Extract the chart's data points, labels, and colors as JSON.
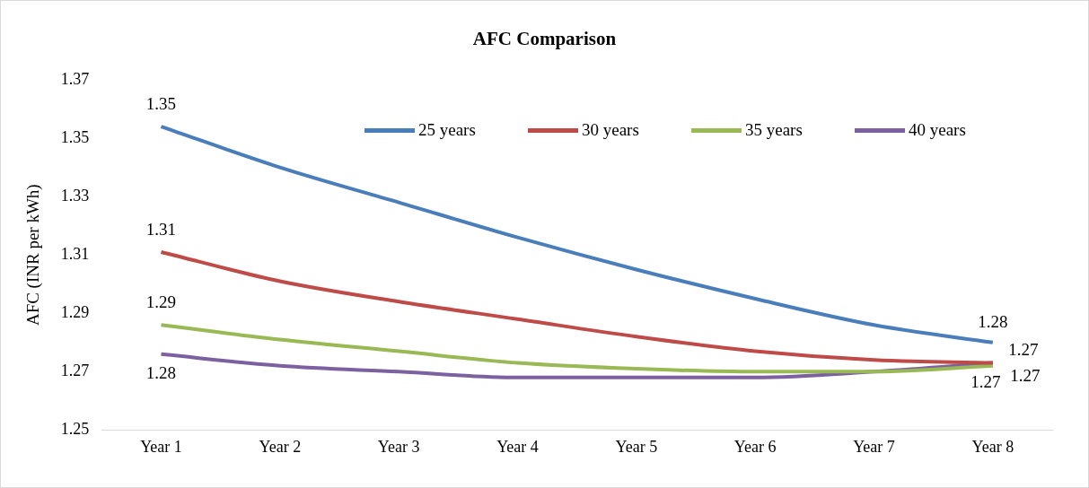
{
  "chart_data": {
    "type": "line",
    "title": "AFC Comparison",
    "ylabel": "AFC (INR per kWh)",
    "categories": [
      "Year 1",
      "Year 2",
      "Year 3",
      "Year 4",
      "Year 5",
      "Year 6",
      "Year 7",
      "Year 8"
    ],
    "series": [
      {
        "name": "25 years",
        "color": "#4a7ebb",
        "values": [
          1.354,
          1.34,
          1.328,
          1.316,
          1.305,
          1.295,
          1.286,
          1.28
        ],
        "value_labels": [
          "1.35",
          null,
          null,
          null,
          null,
          null,
          null,
          "1.28"
        ]
      },
      {
        "name": "30 years",
        "color": "#be4b48",
        "values": [
          1.311,
          1.301,
          1.294,
          1.288,
          1.282,
          1.277,
          1.274,
          1.273
        ],
        "value_labels": [
          "1.31",
          null,
          null,
          null,
          null,
          null,
          null,
          "1.27"
        ]
      },
      {
        "name": "35 years",
        "color": "#98b954",
        "values": [
          1.286,
          1.281,
          1.277,
          1.273,
          1.271,
          1.27,
          1.27,
          1.272
        ],
        "value_labels": [
          "1.29",
          null,
          null,
          null,
          null,
          null,
          null,
          "1.27"
        ]
      },
      {
        "name": "40 years",
        "color": "#7d60a0",
        "values": [
          1.276,
          1.272,
          1.27,
          1.268,
          1.268,
          1.268,
          1.27,
          1.273
        ],
        "value_labels": [
          "1.28",
          null,
          null,
          null,
          null,
          null,
          null,
          "1.27"
        ]
      }
    ],
    "ylim": [
      1.25,
      1.37
    ],
    "yticks": [
      1.25,
      1.27,
      1.29,
      1.31,
      1.33,
      1.35,
      1.37
    ],
    "grid": false,
    "legend": "top",
    "marker": "none",
    "line_style": "solid"
  }
}
